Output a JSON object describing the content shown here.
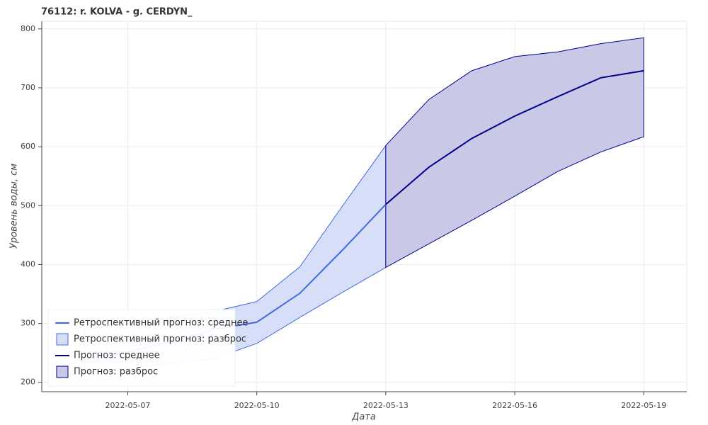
{
  "chart_data": {
    "type": "line",
    "title": "76112: r. KOLVA - g. CERDYN_",
    "x_label": "Дата",
    "y_label": "Уровень воды, см",
    "xlim": [
      "2022-05-05",
      "2022-05-20"
    ],
    "xticks": [
      "2022-05-07",
      "2022-05-10",
      "2022-05-13",
      "2022-05-16",
      "2022-05-19"
    ],
    "ylim": [
      184,
      813
    ],
    "yticks": [
      200,
      300,
      400,
      500,
      600,
      700,
      800
    ],
    "grid": true,
    "legend_position": "bottom-left",
    "series": [
      {
        "name": "Ретроспективный прогноз: среднее",
        "color": "#4169e1",
        "x": [
          "2022-05-06",
          "2022-05-07",
          "2022-05-08",
          "2022-05-09",
          "2022-05-10",
          "2022-05-11",
          "2022-05-12",
          "2022-05-13"
        ],
        "values": [
          240,
          252,
          268,
          290,
          302,
          351,
          425,
          502
        ]
      },
      {
        "name": "Ретроспективный прогноз: разброс",
        "color": "#4169e1",
        "fill": "#d6dff7",
        "x": [
          "2022-05-06",
          "2022-05-07",
          "2022-05-08",
          "2022-05-09",
          "2022-05-10",
          "2022-05-11",
          "2022-05-12",
          "2022-05-13"
        ],
        "upper": [
          290,
          300,
          310,
          320,
          337,
          396,
          500,
          602
        ],
        "lower": [
          215,
          225,
          232,
          240,
          266,
          310,
          353,
          395
        ]
      },
      {
        "name": "Прогноз: среднее",
        "color": "#00008b",
        "x": [
          "2022-05-13",
          "2022-05-14",
          "2022-05-15",
          "2022-05-16",
          "2022-05-17",
          "2022-05-18",
          "2022-05-19"
        ],
        "values": [
          502,
          565,
          614,
          652,
          685,
          717,
          729
        ]
      },
      {
        "name": "Прогноз: разброс",
        "color": "#00008b",
        "fill": "#c9c8e6",
        "x": [
          "2022-05-13",
          "2022-05-14",
          "2022-05-15",
          "2022-05-16",
          "2022-05-17",
          "2022-05-18",
          "2022-05-19"
        ],
        "upper": [
          602,
          680,
          729,
          753,
          761,
          775,
          785
        ],
        "lower": [
          395,
          435,
          475,
          516,
          558,
          591,
          617
        ]
      }
    ]
  }
}
